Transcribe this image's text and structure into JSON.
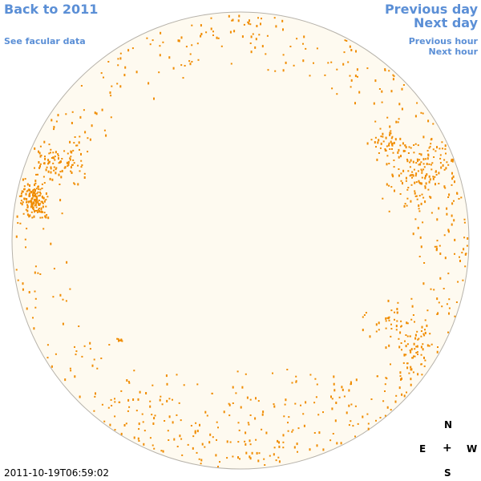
{
  "nav": {
    "back_label": "Back to 2011",
    "facular_label": "See facular data",
    "prev_day_label": "Previous day",
    "next_day_label": "Next day",
    "prev_hour_label": "Previous hour",
    "next_hour_label": "Next hour"
  },
  "compass": {
    "north": "N",
    "east": "E",
    "center": "+",
    "west": "W",
    "south": "S"
  },
  "timestamp": "2011-10-19T06:59:02",
  "colors": {
    "link": "#5b8fd6",
    "disk_fill": "#fefaf0",
    "disk_stroke": "#b7b3ab",
    "facula": "#f08c00"
  }
}
